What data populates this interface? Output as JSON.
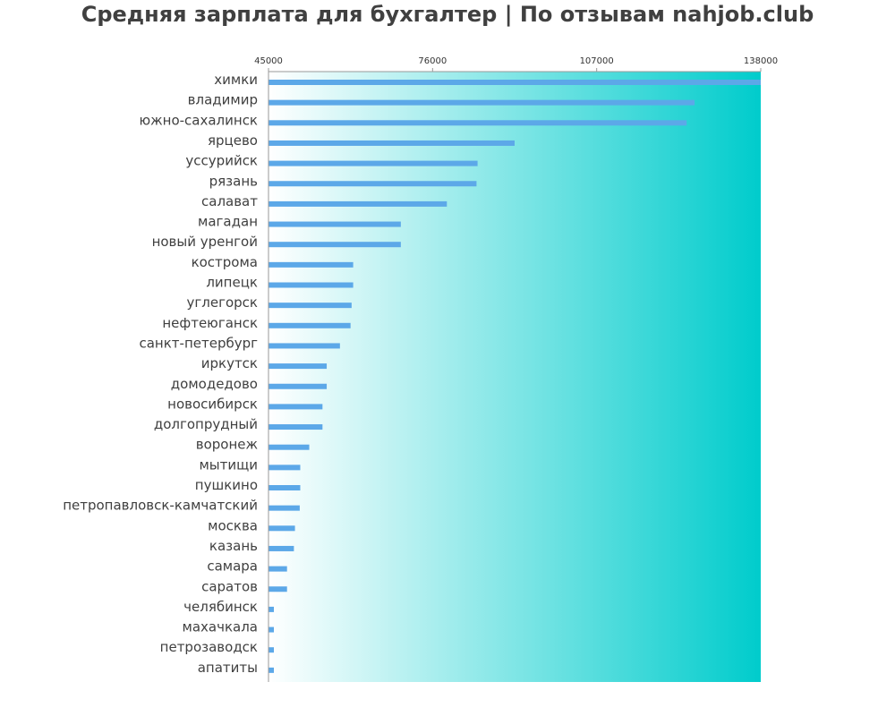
{
  "chart_data": {
    "type": "bar",
    "orientation": "horizontal",
    "title": "Средняя зарплата для бухгалтер | По отзывам nahjob.club",
    "xlabel": "",
    "ylabel": "",
    "xlim": [
      45000,
      138000
    ],
    "x_ticks": [
      "45000",
      "76000",
      "107000",
      "138000"
    ],
    "x_tick_position": "top",
    "grid": false,
    "background_gradient": [
      "#ffffff",
      "#00cccc"
    ],
    "bar_color": "#5ca8e8",
    "categories": [
      "химки",
      "владимир",
      "южно-сахалинск",
      "ярцево",
      "уссурийск",
      "рязань",
      "салават",
      "магадан",
      "новый уренгой",
      "кострома",
      "липецк",
      "углегорск",
      "нефтеюганск",
      "санкт-петербург",
      "иркутск",
      "домодедово",
      "новосибирск",
      "долгопрудный",
      "воронеж",
      "мытищи",
      "пушкино",
      "петропавловск-камчатский",
      "москва",
      "казань",
      "самара",
      "саратов",
      "челябинск",
      "махачкала",
      "петрозаводск",
      "апатиты"
    ],
    "values": [
      138000,
      125500,
      124000,
      91500,
      84500,
      84300,
      78700,
      70000,
      70000,
      61000,
      61000,
      60700,
      60500,
      58500,
      56000,
      56000,
      55200,
      55200,
      52700,
      51000,
      51000,
      50900,
      50000,
      49800,
      48500,
      48500,
      46000,
      46000,
      46000,
      46000
    ]
  }
}
